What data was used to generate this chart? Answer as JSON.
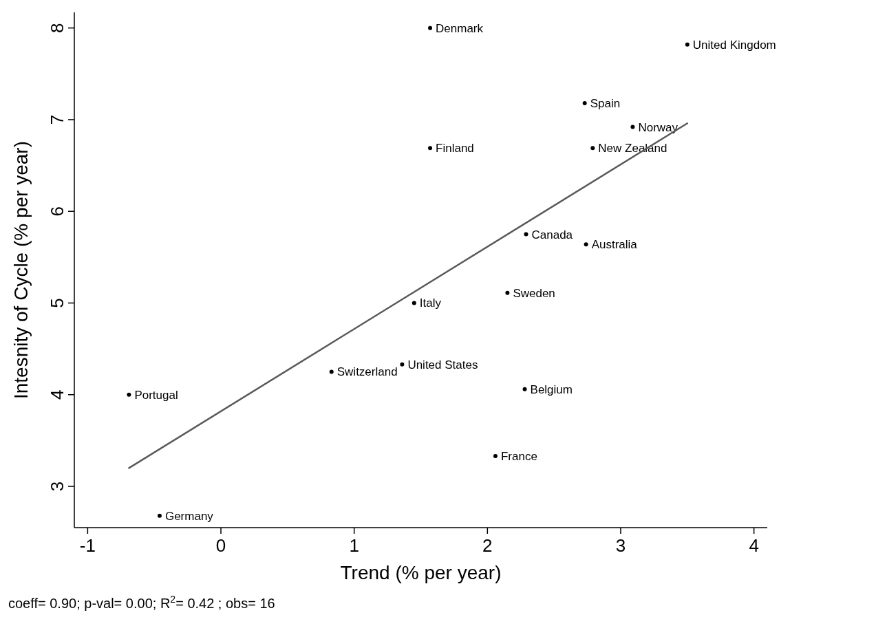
{
  "chart_data": {
    "type": "scatter",
    "xlabel": "Trend (% per year)",
    "ylabel": "Intesnity of Cycle (% per year)",
    "xlim": [
      -1.1,
      4.1
    ],
    "ylim": [
      2.55,
      8.17
    ],
    "xticks": [
      -1,
      0,
      1,
      2,
      3,
      4
    ],
    "yticks": [
      3,
      4,
      5,
      6,
      7,
      8
    ],
    "grid": false,
    "marker": "circle",
    "series": [
      {
        "color": "#000000",
        "x": [
          1.57,
          3.5,
          2.73,
          3.09,
          1.57,
          2.79,
          2.29,
          2.74,
          2.15,
          1.45,
          1.36,
          0.83,
          -0.69,
          2.28,
          2.06,
          -0.46
        ],
        "values": [
          8.0,
          7.82,
          7.18,
          6.92,
          6.69,
          6.69,
          5.75,
          5.64,
          5.11,
          5.0,
          4.33,
          4.25,
          4.0,
          4.06,
          3.33,
          2.68
        ],
        "value_labels": [
          "Denmark",
          "United Kingdom",
          "Spain",
          "Norway",
          "Finland",
          "New Zealand",
          "Canada",
          "Australia",
          "Sweden",
          "Italy",
          "United States",
          "Switzerland",
          "Portugal",
          "Belgium",
          "France",
          "Germany"
        ]
      },
      {
        "type": "line",
        "color": "#595959",
        "x": [
          -0.69,
          3.5
        ],
        "values": [
          3.2,
          6.96
        ],
        "marker": "none",
        "line_style": "solid"
      }
    ],
    "annotations": [
      "coeff= 0.90; p-val= 0.00; R$^{2}$= 0.42 ; obs=   16"
    ]
  }
}
